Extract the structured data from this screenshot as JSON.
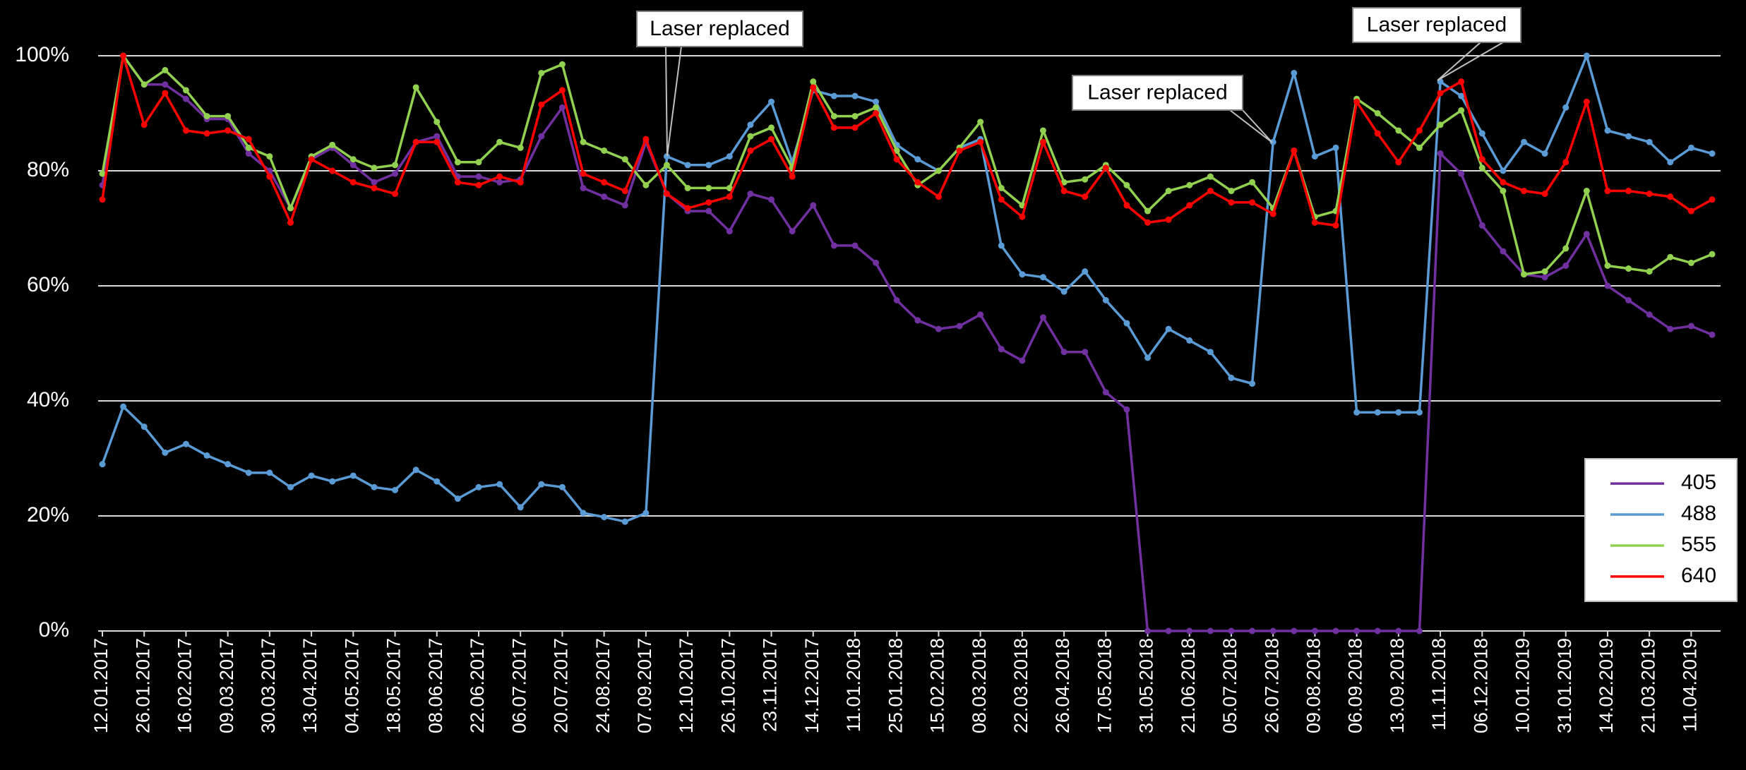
{
  "chart_data": {
    "type": "line",
    "categories": [
      "12.01.2017",
      null,
      "26.01.2017",
      null,
      "16.02.2017",
      null,
      "09.03.2017",
      null,
      "30.03.2017",
      null,
      "13.04.2017",
      null,
      "04.05.2017",
      null,
      "18.05.2017",
      null,
      "08.06.2017",
      null,
      "22.06.2017",
      null,
      "06.07.2017",
      null,
      "20.07.2017",
      null,
      "24.08.2017",
      null,
      "07.09.2017",
      null,
      "12.10.2017",
      null,
      "26.10.2017",
      null,
      "23.11.2017",
      null,
      "14.12.2017",
      null,
      "11.01.2018",
      null,
      "25.01.2018",
      null,
      "15.02.2018",
      null,
      "08.03.2018",
      null,
      "22.03.2018",
      null,
      "26.04.2018",
      null,
      "17.05.2018",
      null,
      "31.05.2018",
      null,
      "21.06.2018",
      null,
      "05.07.2018",
      null,
      "26.07.2018",
      null,
      "09.08.2018",
      null,
      "06.09.2018",
      null,
      "13.09.2018",
      null,
      "11.11.2018",
      null,
      "06.12.2018",
      null,
      "10.01.2019",
      null,
      "31.01.2019",
      null,
      "14.02.2019",
      null,
      "21.03.2019",
      null,
      "11.04.2019",
      null
    ],
    "series": [
      {
        "name": "405",
        "color": "#7030a0",
        "values": [
          77.5,
          100,
          95,
          95,
          92.5,
          89,
          89,
          83,
          80,
          73.5,
          82,
          84,
          81,
          78,
          79.5,
          85,
          86,
          79,
          79,
          78,
          78.5,
          86,
          91,
          77,
          75.5,
          74,
          85,
          76,
          73,
          73,
          69.5,
          76,
          75,
          69.5,
          74,
          67,
          67,
          64,
          57.5,
          54,
          52.5,
          53,
          55,
          49,
          47,
          54.5,
          48.5,
          48.5,
          41.5,
          38.5,
          0,
          0,
          0,
          0,
          0,
          0,
          0,
          0,
          0,
          0,
          0,
          0,
          0,
          0,
          83,
          79.5,
          70.5,
          66,
          62,
          61.5,
          63.5,
          69,
          60,
          57.5,
          55,
          52.5,
          53,
          51.5
        ]
      },
      {
        "name": "488",
        "color": "#5b9bd5",
        "values": [
          29,
          39,
          35.5,
          31,
          32.5,
          30.5,
          29,
          27.5,
          27.5,
          25,
          27,
          26,
          27,
          25,
          24.5,
          28,
          26,
          23,
          25,
          25.5,
          21.5,
          25.5,
          25,
          20.5,
          19.8,
          19,
          20.5,
          82.5,
          81,
          81,
          82.5,
          88,
          92,
          81.5,
          94,
          93,
          93,
          92,
          84.5,
          82,
          80,
          84,
          85.5,
          67,
          62,
          61.5,
          59,
          62.5,
          57.5,
          53.5,
          47.5,
          52.5,
          50.5,
          48.5,
          44,
          43,
          85,
          97,
          82.5,
          84,
          38,
          38,
          38,
          38,
          95.5,
          93,
          86.5,
          80,
          85,
          83,
          91,
          100,
          87,
          86,
          85,
          81.5,
          84,
          83
        ]
      },
      {
        "name": "555",
        "color": "#92d050",
        "values": [
          79.5,
          100,
          95,
          97.5,
          94,
          89.5,
          89.5,
          84,
          82.5,
          73.5,
          82.5,
          84.5,
          82,
          80.5,
          81,
          94.5,
          88.5,
          81.5,
          81.5,
          85,
          84,
          97,
          98.5,
          85,
          83.5,
          82,
          77.5,
          81,
          77,
          77,
          77,
          86,
          87.5,
          80.5,
          95.5,
          89.5,
          89.5,
          91,
          83.5,
          77.5,
          80,
          84,
          88.5,
          77,
          74,
          87,
          78,
          78.5,
          81,
          77.5,
          73,
          76.5,
          77.5,
          79,
          76.5,
          78,
          73.5,
          83.5,
          72,
          73,
          92.5,
          90,
          87,
          84,
          88,
          90.5,
          80.5,
          76.5,
          62,
          62.5,
          66.5,
          76.5,
          63.5,
          63,
          62.5,
          65,
          64,
          65.5
        ]
      },
      {
        "name": "640",
        "color": "#ff0000",
        "values": [
          75,
          100,
          88,
          93.5,
          87,
          86.5,
          87,
          85.5,
          79,
          71,
          82,
          80,
          78,
          77,
          76,
          85,
          85,
          78,
          77.5,
          79,
          78,
          91.5,
          94,
          79.5,
          78,
          76.5,
          85.5,
          76,
          73.5,
          74.5,
          75.5,
          83.5,
          85.5,
          79,
          94.5,
          87.5,
          87.5,
          90,
          82,
          78,
          75.5,
          83.5,
          85,
          75,
          72,
          85,
          76.5,
          75.5,
          80.5,
          74,
          71,
          71.5,
          74,
          76.5,
          74.5,
          74.5,
          72.5,
          83.5,
          71,
          70.5,
          92,
          86.5,
          81.5,
          87,
          93.5,
          95.5,
          82,
          78,
          76.5,
          76,
          81.5,
          92,
          76.5,
          76.5,
          76,
          75.5,
          73,
          75
        ]
      }
    ],
    "ylim": [
      0,
      100
    ],
    "yticks": [
      {
        "value": 0,
        "label": "0%"
      },
      {
        "value": 20,
        "label": "20%"
      },
      {
        "value": 40,
        "label": "40%"
      },
      {
        "value": 60,
        "label": "60%"
      },
      {
        "value": 80,
        "label": "80%"
      },
      {
        "value": 100,
        "label": "100%"
      }
    ],
    "grid": true,
    "legend": "lower right",
    "annotations": [
      "Laser replaced",
      "Laser replaced",
      "Laser replaced"
    ]
  }
}
